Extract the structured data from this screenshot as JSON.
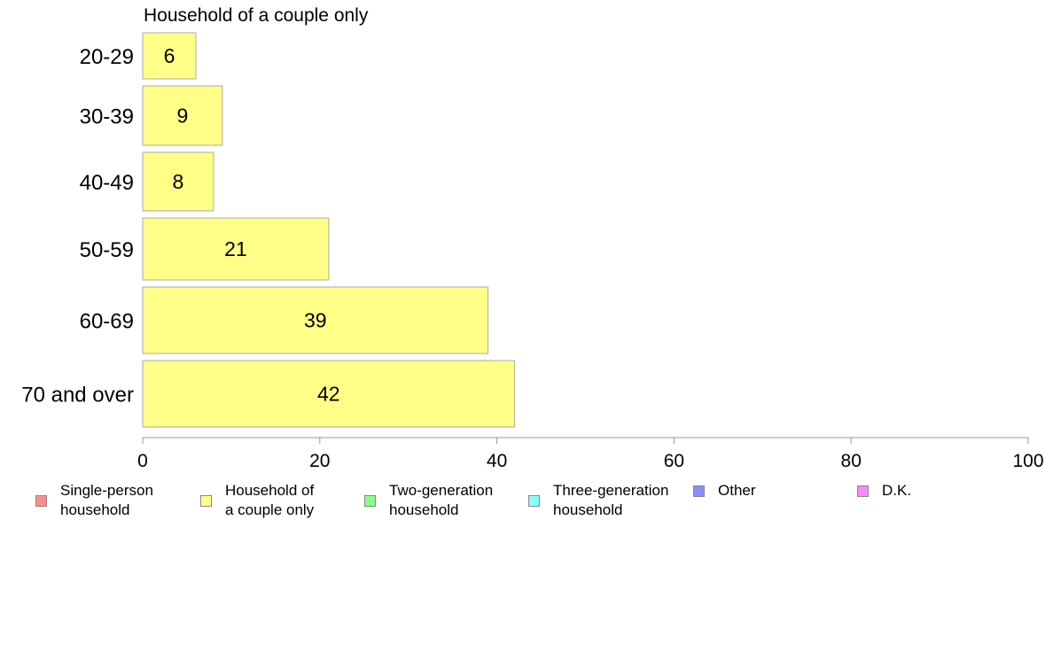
{
  "chart_data": {
    "type": "bar",
    "orientation": "horizontal",
    "title": "Household of a couple only",
    "categories": [
      "20-29",
      "30-39",
      "40-49",
      "50-59",
      "60-69",
      "70 and over"
    ],
    "values": [
      6,
      9,
      8,
      21,
      39,
      42
    ],
    "data_labels": [
      "6",
      "9",
      "8",
      "21",
      "39",
      "42"
    ],
    "bar_color": "#ffff88",
    "bar_stroke": "#aaaaaa",
    "xlim": [
      0,
      100
    ],
    "xticks": [
      0,
      20,
      40,
      60,
      80,
      100
    ],
    "xlabel": "",
    "ylabel": "",
    "grid": false,
    "legend_position": "bottom",
    "legend": [
      {
        "label": "Single-person\nhousehold",
        "color": "#ff8c8c"
      },
      {
        "label": "Household of\na couple only",
        "color": "#ffff88"
      },
      {
        "label": "Two-generation\nhousehold",
        "color": "#88ff88"
      },
      {
        "label": "Three-generation\nhousehold",
        "color": "#88ffff"
      },
      {
        "label": "Other",
        "color": "#8c8cff"
      },
      {
        "label": "D.K.",
        "color": "#ff88ff"
      }
    ]
  }
}
